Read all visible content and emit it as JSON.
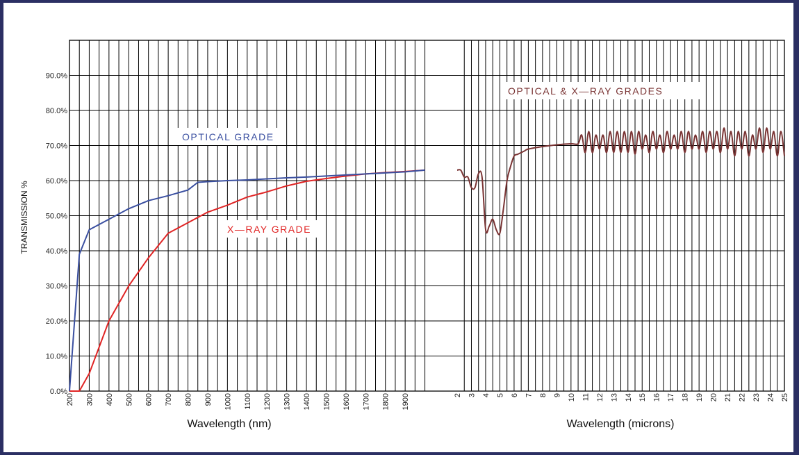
{
  "chart_data": {
    "type": "line",
    "ylabel": "TRANSMISSION %",
    "xlabel_nm": "Wavelength (nm)",
    "xlabel_microns": "Wavelength (microns)",
    "ylim": [
      0,
      100
    ],
    "grid": true,
    "y_ticks": [
      "0.0%",
      "10.0%",
      "20.0%",
      "30.0%",
      "40.0%",
      "50.0%",
      "60.0%",
      "70.0%",
      "80.0%",
      "90.0%"
    ],
    "x_ticks_nm": [
      "200",
      "300",
      "400",
      "500",
      "600",
      "700",
      "800",
      "900",
      "1000",
      "1100",
      "1200",
      "1300",
      "1400",
      "1500",
      "1600",
      "1700",
      "1800",
      "1900"
    ],
    "x_ticks_microns": [
      "2",
      "3",
      "4",
      "5",
      "6",
      "7",
      "8",
      "9",
      "10",
      "11",
      "12",
      "13",
      "14",
      "15",
      "16",
      "17",
      "18",
      "19",
      "20",
      "21",
      "22",
      "23",
      "24",
      "25"
    ],
    "annotations": {
      "optical": "OPTICAL GRADE",
      "xray": "X—RAY GRADE",
      "both": "OPTICAL & X—RAY GRADES"
    },
    "colors": {
      "optical": "#3a4fa0",
      "xray": "#e02424",
      "both": "#7a3434",
      "grid": "#000000"
    },
    "series": [
      {
        "key": "optical",
        "name": "OPTICAL GRADE",
        "unit": "nm",
        "x": [
          200,
          250,
          300,
          400,
          500,
          600,
          700,
          800,
          850,
          900,
          1000,
          1100,
          1200,
          1300,
          1400,
          1500,
          1600,
          1700,
          1800,
          1900,
          2000
        ],
        "y": [
          0,
          39,
          46,
          49,
          52,
          54.3,
          55.7,
          57.3,
          59.5,
          59.7,
          60,
          60.2,
          60.5,
          60.8,
          61,
          61.3,
          61.6,
          61.9,
          62.2,
          62.5,
          63
        ]
      },
      {
        "key": "xray",
        "name": "X—RAY GRADE",
        "unit": "nm",
        "x": [
          200,
          250,
          300,
          400,
          500,
          600,
          700,
          800,
          900,
          1000,
          1100,
          1200,
          1300,
          1400,
          1500,
          1600,
          1700,
          1800,
          1900,
          2000
        ],
        "y": [
          0,
          0,
          5,
          20,
          30,
          38,
          45,
          48,
          51,
          53,
          55.3,
          56.8,
          58.5,
          59.8,
          60.6,
          61.3,
          61.9,
          62.3,
          62.6,
          63
        ]
      },
      {
        "key": "both",
        "name": "OPTICAL & X—RAY GRADES",
        "unit": "microns",
        "x": [
          2,
          2.25,
          2.5,
          2.75,
          3,
          3.25,
          3.5,
          3.75,
          4,
          4.25,
          4.5,
          4.75,
          5,
          5.25,
          5.5,
          5.75,
          6,
          6.25,
          6.5,
          6.75,
          7,
          8,
          9,
          10,
          10.5,
          10.75,
          11,
          11.25,
          11.5,
          11.75,
          12,
          12.25,
          12.5,
          12.75,
          13,
          13.25,
          13.5,
          13.75,
          14,
          14.25,
          14.5,
          14.75,
          15,
          15.25,
          15.5,
          15.75,
          16,
          16.25,
          16.5,
          16.75,
          17,
          17.25,
          17.5,
          17.75,
          18,
          18.25,
          18.5,
          18.75,
          19,
          19.25,
          19.5,
          19.75,
          20,
          20.25,
          20.5,
          20.75,
          21,
          21.25,
          21.5,
          21.75,
          22,
          22.25,
          22.5,
          22.75,
          23,
          23.25,
          23.5,
          23.75,
          24,
          24.25,
          24.5,
          24.75,
          25
        ],
        "y": [
          63,
          63,
          61,
          61,
          58,
          58,
          62,
          61,
          46,
          47,
          49,
          46,
          45,
          52,
          60,
          64,
          67,
          67.5,
          68,
          68.5,
          69,
          69.7,
          70.2,
          70.5,
          70.5,
          73,
          68,
          74,
          68,
          73,
          69,
          73,
          68,
          74,
          68,
          74,
          68,
          74,
          68,
          74,
          67.5,
          74,
          69,
          73,
          68,
          74,
          69,
          73,
          68,
          74,
          69,
          73,
          69,
          74,
          68,
          74,
          69,
          73,
          69,
          74,
          68,
          74,
          69,
          74,
          68,
          75,
          69,
          74,
          67,
          74,
          69,
          74,
          67,
          73,
          69,
          75,
          68,
          75,
          69,
          74,
          67,
          74,
          67
        ]
      }
    ]
  }
}
